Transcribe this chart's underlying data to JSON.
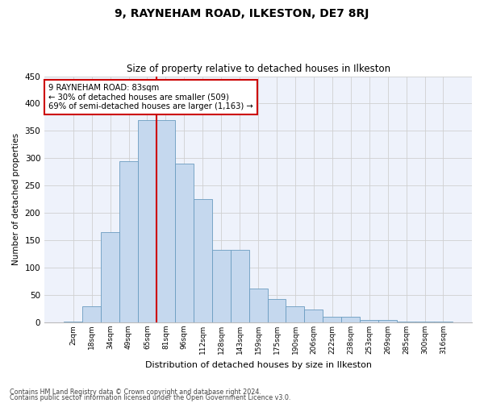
{
  "title": "9, RAYNEHAM ROAD, ILKESTON, DE7 8RJ",
  "subtitle": "Size of property relative to detached houses in Ilkeston",
  "xlabel": "Distribution of detached houses by size in Ilkeston",
  "ylabel": "Number of detached properties",
  "categories": [
    "2sqm",
    "18sqm",
    "34sqm",
    "49sqm",
    "65sqm",
    "81sqm",
    "96sqm",
    "112sqm",
    "128sqm",
    "143sqm",
    "159sqm",
    "175sqm",
    "190sqm",
    "206sqm",
    "222sqm",
    "238sqm",
    "253sqm",
    "269sqm",
    "285sqm",
    "300sqm",
    "316sqm"
  ],
  "values": [
    1,
    30,
    165,
    295,
    370,
    370,
    290,
    225,
    133,
    133,
    62,
    43,
    30,
    23,
    11,
    11,
    5,
    4,
    2,
    1,
    1
  ],
  "bar_color": "#c5d8ee",
  "bar_edge_color": "#6a9cc0",
  "vline_color": "#cc0000",
  "annotation_text": "9 RAYNEHAM ROAD: 83sqm\n← 30% of detached houses are smaller (509)\n69% of semi-detached houses are larger (1,163) →",
  "annotation_box_color": "white",
  "annotation_box_edge": "#cc0000",
  "ylim": [
    0,
    450
  ],
  "yticks": [
    0,
    50,
    100,
    150,
    200,
    250,
    300,
    350,
    400,
    450
  ],
  "bg_color": "#eef2fb",
  "grid_color": "#d0d0d0",
  "footer1": "Contains HM Land Registry data © Crown copyright and database right 2024.",
  "footer2": "Contains public sector information licensed under the Open Government Licence v3.0."
}
